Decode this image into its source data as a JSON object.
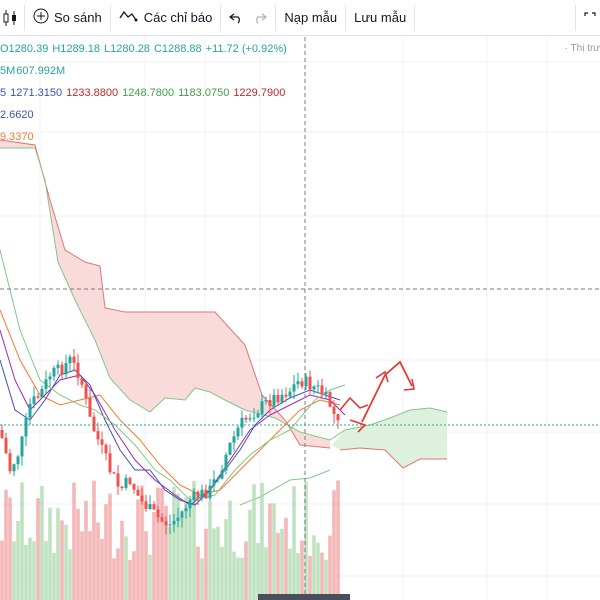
{
  "toolbar": {
    "compare_label": "So sánh",
    "indicators_label": "Các chỉ báo",
    "save_template_label": "Nạp mẫu",
    "save_label": "Lưu mẫu"
  },
  "legend": {
    "ohlc": {
      "open": "O1280.39",
      "high": "H1289.18",
      "low": "L1280.28",
      "close": "C1288.88",
      "change": "+11.72 (+0.92%)"
    },
    "volume": {
      "prefix": "5M",
      "value": "607.992M"
    },
    "ichimoku": {
      "prefix": "5",
      "v1": "1271.3150",
      "v2": "1233.8800",
      "v3": "1248.7800",
      "v4": "1183.0750",
      "v5": "1229.7900"
    },
    "ma1": "2.6620",
    "ma2": "9.3370"
  },
  "watermark": "· Thị trư",
  "colors": {
    "up": "#26a69a",
    "down": "#ef5350",
    "cloud_bear": "#f8d7d7",
    "cloud_bull": "#d9f0da",
    "ma_orange": "#f07c2e",
    "ma_blue": "#3f51b5",
    "ma_purple": "#9c27b0",
    "price_line": "#26a69a"
  }
}
